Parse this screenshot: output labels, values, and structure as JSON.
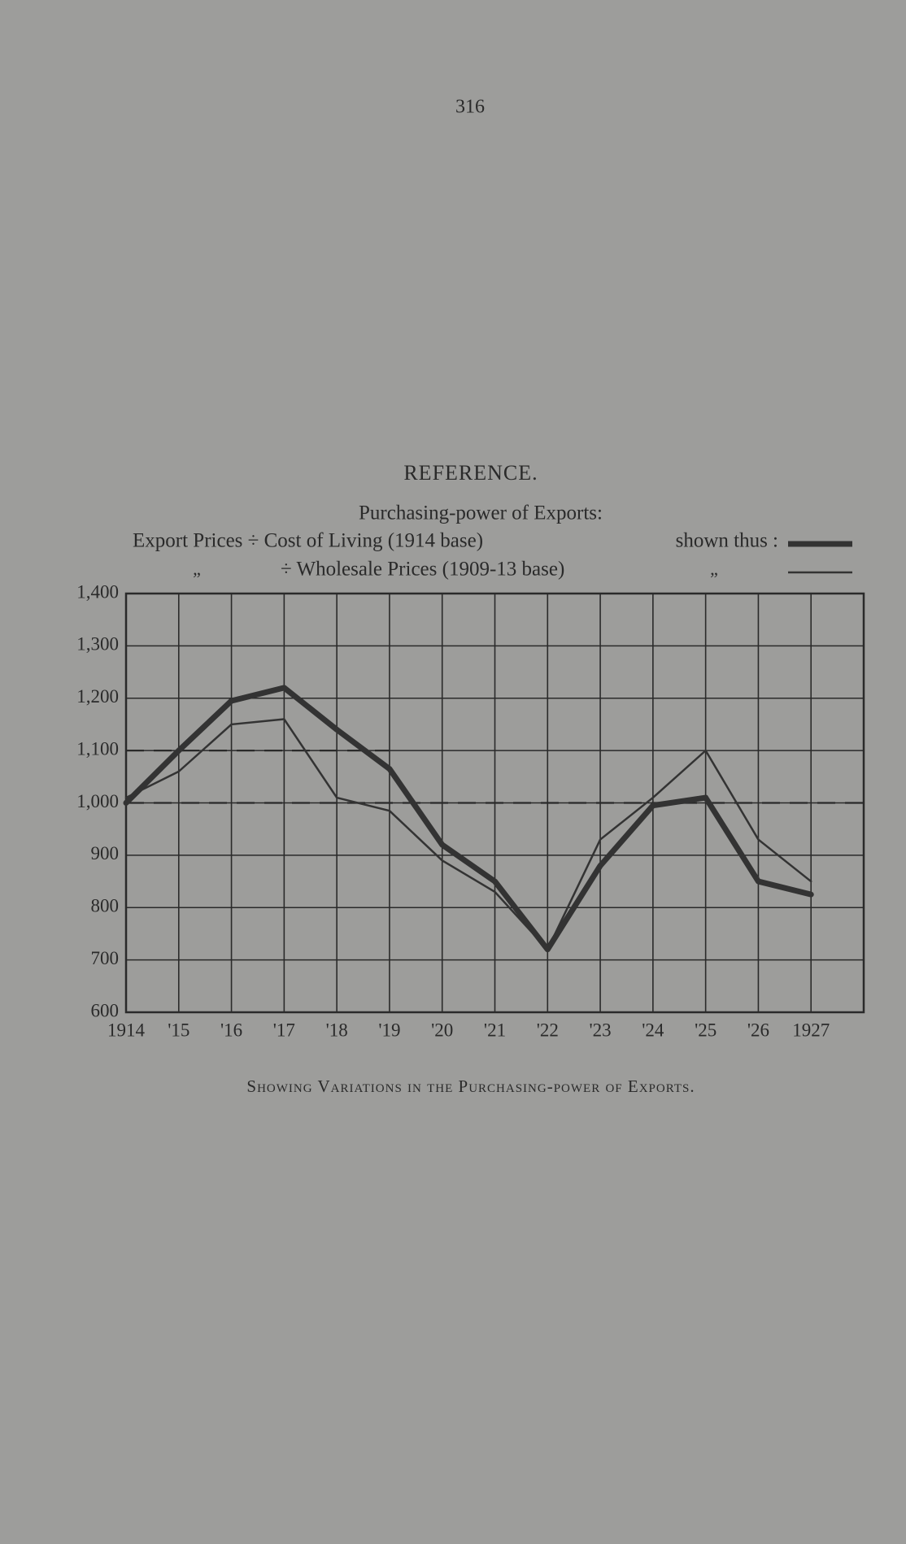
{
  "page_number": "316",
  "chart_data": {
    "type": "line",
    "legend_heading": "REFERENCE.",
    "legend_title": "Purchasing-power of Exports:",
    "legend_suffix": "shown thus :",
    "ditto": "„",
    "caption": "Showing Variations in the Purchasing-power of Exports.",
    "x": [
      1914,
      1915,
      1916,
      1917,
      1918,
      1919,
      1920,
      1921,
      1922,
      1923,
      1924,
      1925,
      1926,
      1927
    ],
    "xlim": [
      1914,
      1928
    ],
    "xticks": [
      1914,
      {
        "value": 1915,
        "label": "'15"
      },
      {
        "value": 1916,
        "label": "'16"
      },
      {
        "value": 1917,
        "label": "'17"
      },
      {
        "value": 1918,
        "label": "'18"
      },
      {
        "value": 1919,
        "label": "'19"
      },
      {
        "value": 1920,
        "label": "'20"
      },
      {
        "value": 1921,
        "label": "'21"
      },
      {
        "value": 1922,
        "label": "'22"
      },
      {
        "value": 1923,
        "label": "'23"
      },
      {
        "value": 1924,
        "label": "'24"
      },
      {
        "value": 1925,
        "label": "'25"
      },
      {
        "value": 1926,
        "label": "'26"
      },
      1927
    ],
    "ylim": [
      600,
      1400
    ],
    "yticks": [
      600,
      700,
      800,
      900,
      {
        "value": 1000,
        "label": "1,000"
      },
      {
        "value": 1100,
        "label": "1,100"
      },
      {
        "value": 1200,
        "label": "1,200"
      },
      {
        "value": 1300,
        "label": "1,300"
      },
      {
        "value": 1400,
        "label": "1,400"
      }
    ],
    "grid": true,
    "reference_lines": [
      {
        "y": 1000,
        "x_end": 1928
      },
      {
        "y": 1100,
        "x_end": 1919
      }
    ],
    "series": [
      {
        "name": "Export Prices ÷ Cost of Living (1914 base)",
        "color": "#333333",
        "line_width": 7,
        "values": [
          1000,
          1100,
          1195,
          1220,
          1140,
          1065,
          920,
          850,
          720,
          880,
          995,
          1010,
          850,
          825
        ]
      },
      {
        "name": "÷ Wholesale Prices (1909-13 base)",
        "color": "#333333",
        "line_width": 2.5,
        "values": [
          1010,
          1060,
          1150,
          1160,
          1010,
          985,
          890,
          830,
          720,
          930,
          1010,
          1100,
          930,
          850
        ]
      }
    ]
  }
}
